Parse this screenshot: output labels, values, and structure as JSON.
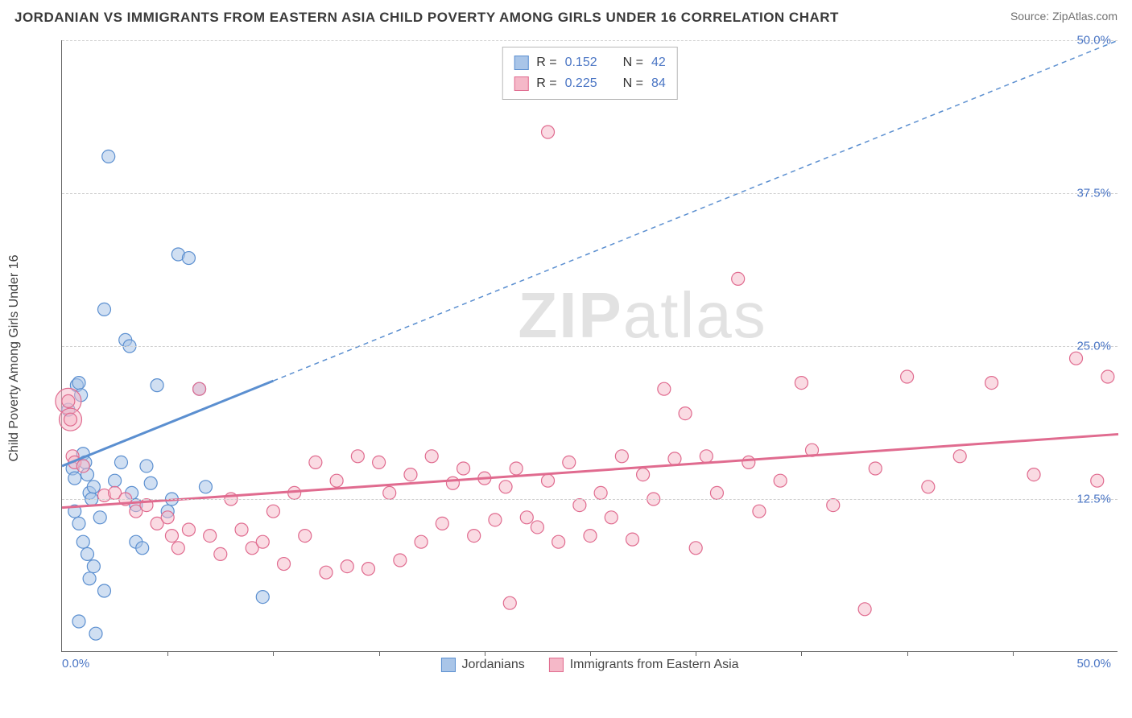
{
  "header": {
    "title": "JORDANIAN VS IMMIGRANTS FROM EASTERN ASIA CHILD POVERTY AMONG GIRLS UNDER 16 CORRELATION CHART",
    "source": "Source: ZipAtlas.com"
  },
  "chart": {
    "type": "scatter",
    "y_label": "Child Poverty Among Girls Under 16",
    "watermark": "ZIPatlas",
    "background_color": "#ffffff",
    "grid_color": "#d0d0d0",
    "axis_color": "#666666",
    "tick_label_color": "#4a75c4",
    "xlim": [
      0,
      50
    ],
    "ylim": [
      0,
      50
    ],
    "x_origin_label": "0.0%",
    "x_max_label": "50.0%",
    "y_ticks": [
      {
        "value": 12.5,
        "label": "12.5%"
      },
      {
        "value": 25.0,
        "label": "25.0%"
      },
      {
        "value": 37.5,
        "label": "37.5%"
      },
      {
        "value": 50.0,
        "label": "50.0%"
      }
    ],
    "x_tick_positions": [
      5,
      10,
      15,
      20,
      25,
      30,
      35,
      40,
      45
    ],
    "marker_radius": 8,
    "marker_stroke_width": 1.2,
    "trend_line_width_solid": 3,
    "trend_line_width_dash": 1.5,
    "trend_dash": "6,5",
    "series": [
      {
        "id": "jordanians",
        "label": "Jordanians",
        "fill": "#a9c5e8",
        "stroke": "#5b8fd0",
        "fill_opacity": 0.55,
        "r_value": "0.152",
        "n_value": "42",
        "trend": {
          "x1": 0,
          "y1": 15.2,
          "x2": 50,
          "y2": 50,
          "solid_until_x": 10
        },
        "points": [
          [
            0.5,
            15.0
          ],
          [
            0.6,
            14.2
          ],
          [
            0.7,
            21.8
          ],
          [
            0.8,
            22.0
          ],
          [
            0.9,
            21.0
          ],
          [
            0.3,
            19.8
          ],
          [
            1.0,
            16.2
          ],
          [
            1.1,
            15.5
          ],
          [
            1.2,
            14.5
          ],
          [
            1.3,
            13.0
          ],
          [
            1.4,
            12.5
          ],
          [
            1.5,
            13.5
          ],
          [
            0.6,
            11.5
          ],
          [
            0.8,
            10.5
          ],
          [
            1.0,
            9.0
          ],
          [
            1.2,
            8.0
          ],
          [
            1.5,
            7.0
          ],
          [
            1.3,
            6.0
          ],
          [
            1.6,
            1.5
          ],
          [
            0.8,
            2.5
          ],
          [
            2.0,
            28.0
          ],
          [
            2.2,
            40.5
          ],
          [
            2.5,
            14.0
          ],
          [
            2.8,
            15.5
          ],
          [
            3.0,
            25.5
          ],
          [
            3.2,
            25.0
          ],
          [
            3.3,
            13.0
          ],
          [
            3.5,
            12.0
          ],
          [
            3.5,
            9.0
          ],
          [
            3.8,
            8.5
          ],
          [
            4.0,
            15.2
          ],
          [
            4.2,
            13.8
          ],
          [
            4.5,
            21.8
          ],
          [
            5.0,
            11.5
          ],
          [
            5.2,
            12.5
          ],
          [
            5.5,
            32.5
          ],
          [
            6.0,
            32.2
          ],
          [
            6.5,
            21.5
          ],
          [
            6.8,
            13.5
          ],
          [
            9.5,
            4.5
          ],
          [
            2.0,
            5.0
          ],
          [
            1.8,
            11.0
          ]
        ]
      },
      {
        "id": "eastern_asia",
        "label": "Immigrants from Eastern Asia",
        "fill": "#f5b8c8",
        "stroke": "#e06b8f",
        "fill_opacity": 0.5,
        "r_value": "0.225",
        "n_value": "84",
        "trend": {
          "x1": 0,
          "y1": 11.8,
          "x2": 50,
          "y2": 17.8,
          "solid_until_x": 50
        },
        "points": [
          [
            0.3,
            20.5
          ],
          [
            0.4,
            19.0
          ],
          [
            0.5,
            16.0
          ],
          [
            0.6,
            15.5
          ],
          [
            1.0,
            15.2
          ],
          [
            2.0,
            12.8
          ],
          [
            2.5,
            13.0
          ],
          [
            3.0,
            12.5
          ],
          [
            3.5,
            11.5
          ],
          [
            4.0,
            12.0
          ],
          [
            4.5,
            10.5
          ],
          [
            5.0,
            11.0
          ],
          [
            5.2,
            9.5
          ],
          [
            5.5,
            8.5
          ],
          [
            6.0,
            10.0
          ],
          [
            6.5,
            21.5
          ],
          [
            7.0,
            9.5
          ],
          [
            7.5,
            8.0
          ],
          [
            8.0,
            12.5
          ],
          [
            8.5,
            10.0
          ],
          [
            9.0,
            8.5
          ],
          [
            9.5,
            9.0
          ],
          [
            10.0,
            11.5
          ],
          [
            10.5,
            7.2
          ],
          [
            11.0,
            13.0
          ],
          [
            11.5,
            9.5
          ],
          [
            12.0,
            15.5
          ],
          [
            12.5,
            6.5
          ],
          [
            13.0,
            14.0
          ],
          [
            13.5,
            7.0
          ],
          [
            14.0,
            16.0
          ],
          [
            14.5,
            6.8
          ],
          [
            15.0,
            15.5
          ],
          [
            15.5,
            13.0
          ],
          [
            16.0,
            7.5
          ],
          [
            16.5,
            14.5
          ],
          [
            17.0,
            9.0
          ],
          [
            17.5,
            16.0
          ],
          [
            18.0,
            10.5
          ],
          [
            18.5,
            13.8
          ],
          [
            19.0,
            15.0
          ],
          [
            19.5,
            9.5
          ],
          [
            20.0,
            14.2
          ],
          [
            20.5,
            10.8
          ],
          [
            21.0,
            13.5
          ],
          [
            21.2,
            4.0
          ],
          [
            21.5,
            15.0
          ],
          [
            22.0,
            11.0
          ],
          [
            22.5,
            10.2
          ],
          [
            23.0,
            14.0
          ],
          [
            23.5,
            9.0
          ],
          [
            23.0,
            42.5
          ],
          [
            24.0,
            15.5
          ],
          [
            24.5,
            12.0
          ],
          [
            25.0,
            9.5
          ],
          [
            25.5,
            13.0
          ],
          [
            26.0,
            11.0
          ],
          [
            26.5,
            16.0
          ],
          [
            27.0,
            9.2
          ],
          [
            27.5,
            14.5
          ],
          [
            28.0,
            12.5
          ],
          [
            28.5,
            21.5
          ],
          [
            29.0,
            15.8
          ],
          [
            29.5,
            19.5
          ],
          [
            30.0,
            8.5
          ],
          [
            30.5,
            16.0
          ],
          [
            31.0,
            13.0
          ],
          [
            32.0,
            30.5
          ],
          [
            32.5,
            15.5
          ],
          [
            33.0,
            11.5
          ],
          [
            34.0,
            14.0
          ],
          [
            35.0,
            22.0
          ],
          [
            35.5,
            16.5
          ],
          [
            36.5,
            12.0
          ],
          [
            38.0,
            3.5
          ],
          [
            38.5,
            15.0
          ],
          [
            40.0,
            22.5
          ],
          [
            41.0,
            13.5
          ],
          [
            42.5,
            16.0
          ],
          [
            44.0,
            22.0
          ],
          [
            46.0,
            14.5
          ],
          [
            48.0,
            24.0
          ],
          [
            49.0,
            14.0
          ],
          [
            49.5,
            22.5
          ]
        ],
        "large_points": [
          [
            0.3,
            20.5,
            16
          ],
          [
            0.4,
            19.0,
            14
          ]
        ]
      }
    ]
  },
  "legend_labels": {
    "r_prefix": "R =",
    "n_prefix": "N ="
  }
}
